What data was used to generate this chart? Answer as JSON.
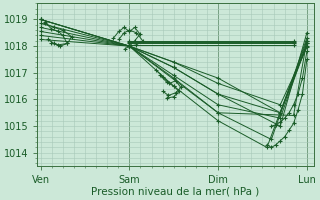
{
  "bg_color": "#cce8d8",
  "grid_color": "#a8c8b8",
  "line_color": "#1a5c28",
  "xlabel": "Pression niveau de la mer( hPa )",
  "xtick_labels": [
    "Ven",
    "Sam",
    "Dim",
    "Lun"
  ],
  "xtick_positions": [
    0,
    1,
    2,
    3
  ],
  "ylim": [
    1013.5,
    1019.6
  ],
  "yticks": [
    1014,
    1015,
    1016,
    1017,
    1018,
    1019
  ],
  "xlim": [
    -0.04,
    3.08
  ],
  "fontsize_label": 7.5,
  "fontsize_tick": 7,
  "vline_color": "#3a7040",
  "ensemble_lines": [
    {
      "x": [
        0.0,
        1.0,
        1.5,
        2.0,
        2.7,
        3.0
      ],
      "y": [
        1019.0,
        1018.0,
        1017.2,
        1016.2,
        1015.0,
        1018.5
      ]
    },
    {
      "x": [
        0.0,
        1.0,
        1.5,
        2.0,
        2.6,
        3.0
      ],
      "y": [
        1019.0,
        1018.0,
        1016.8,
        1015.5,
        1014.5,
        1018.3
      ]
    },
    {
      "x": [
        0.0,
        1.0,
        1.5,
        2.0,
        2.55,
        3.0
      ],
      "y": [
        1019.0,
        1018.0,
        1016.5,
        1015.2,
        1014.2,
        1018.2
      ]
    },
    {
      "x": [
        0.0,
        1.0,
        1.5,
        2.0,
        2.7,
        3.0
      ],
      "y": [
        1018.85,
        1018.0,
        1016.9,
        1015.8,
        1015.3,
        1018.1
      ]
    },
    {
      "x": [
        0.0,
        1.0,
        1.5,
        2.0,
        2.7,
        3.0
      ],
      "y": [
        1018.7,
        1018.0,
        1017.2,
        1016.2,
        1015.5,
        1018.0
      ]
    },
    {
      "x": [
        0.0,
        1.0,
        1.5,
        2.0,
        2.7,
        3.0
      ],
      "y": [
        1018.55,
        1018.0,
        1017.4,
        1016.6,
        1015.8,
        1017.95
      ]
    },
    {
      "x": [
        0.0,
        1.0,
        2.0,
        2.7,
        3.0
      ],
      "y": [
        1018.4,
        1018.0,
        1016.8,
        1015.5,
        1018.1
      ]
    },
    {
      "x": [
        0.0,
        1.0,
        2.0,
        2.85,
        3.0
      ],
      "y": [
        1018.25,
        1018.0,
        1015.5,
        1015.4,
        1018.2
      ]
    }
  ],
  "loop_ven": [
    {
      "x": [
        0.05,
        0.12,
        0.2,
        0.25,
        0.3,
        0.22,
        0.15,
        0.08
      ],
      "y": [
        1018.9,
        1018.65,
        1018.55,
        1018.4,
        1018.1,
        1018.0,
        1018.1,
        1018.25
      ]
    },
    {
      "x": [
        0.05,
        0.15,
        0.25,
        0.35,
        0.3,
        0.2,
        0.12
      ],
      "y": [
        1018.85,
        1018.7,
        1018.6,
        1018.35,
        1018.1,
        1018.05,
        1018.1
      ]
    }
  ],
  "loop_sam_top": [
    {
      "x": [
        0.82,
        0.88,
        0.94,
        1.0,
        1.06,
        1.12,
        1.06,
        1.0,
        0.95
      ],
      "y": [
        1018.3,
        1018.55,
        1018.7,
        1018.55,
        1018.7,
        1018.45,
        1018.2,
        1018.0,
        1017.9
      ]
    },
    {
      "x": [
        0.88,
        0.94,
        1.0,
        1.08,
        1.15,
        1.08,
        1.0
      ],
      "y": [
        1018.25,
        1018.5,
        1018.6,
        1018.5,
        1018.2,
        1018.05,
        1018.0
      ]
    }
  ],
  "loop_sam_lower": [
    {
      "x": [
        1.3,
        1.38,
        1.45,
        1.52,
        1.58,
        1.52,
        1.44,
        1.38
      ],
      "y": [
        1017.1,
        1016.85,
        1016.6,
        1016.7,
        1016.45,
        1016.25,
        1016.15,
        1016.3
      ]
    },
    {
      "x": [
        1.35,
        1.42,
        1.5,
        1.56,
        1.5,
        1.42
      ],
      "y": [
        1016.9,
        1016.65,
        1016.5,
        1016.3,
        1016.1,
        1016.05
      ]
    }
  ],
  "dim_curve": [
    {
      "x": [
        2.55,
        2.6,
        2.65,
        2.7,
        2.75,
        2.8,
        2.85,
        2.9,
        2.95,
        3.0
      ],
      "y": [
        1014.3,
        1014.2,
        1014.3,
        1014.45,
        1014.6,
        1014.85,
        1015.1,
        1015.6,
        1016.2,
        1017.5
      ]
    },
    {
      "x": [
        2.6,
        2.65,
        2.7,
        2.75,
        2.8,
        2.85,
        2.9,
        2.95,
        3.0
      ],
      "y": [
        1015.0,
        1015.05,
        1015.15,
        1015.3,
        1015.5,
        1015.8,
        1016.2,
        1016.8,
        1017.8
      ]
    }
  ]
}
